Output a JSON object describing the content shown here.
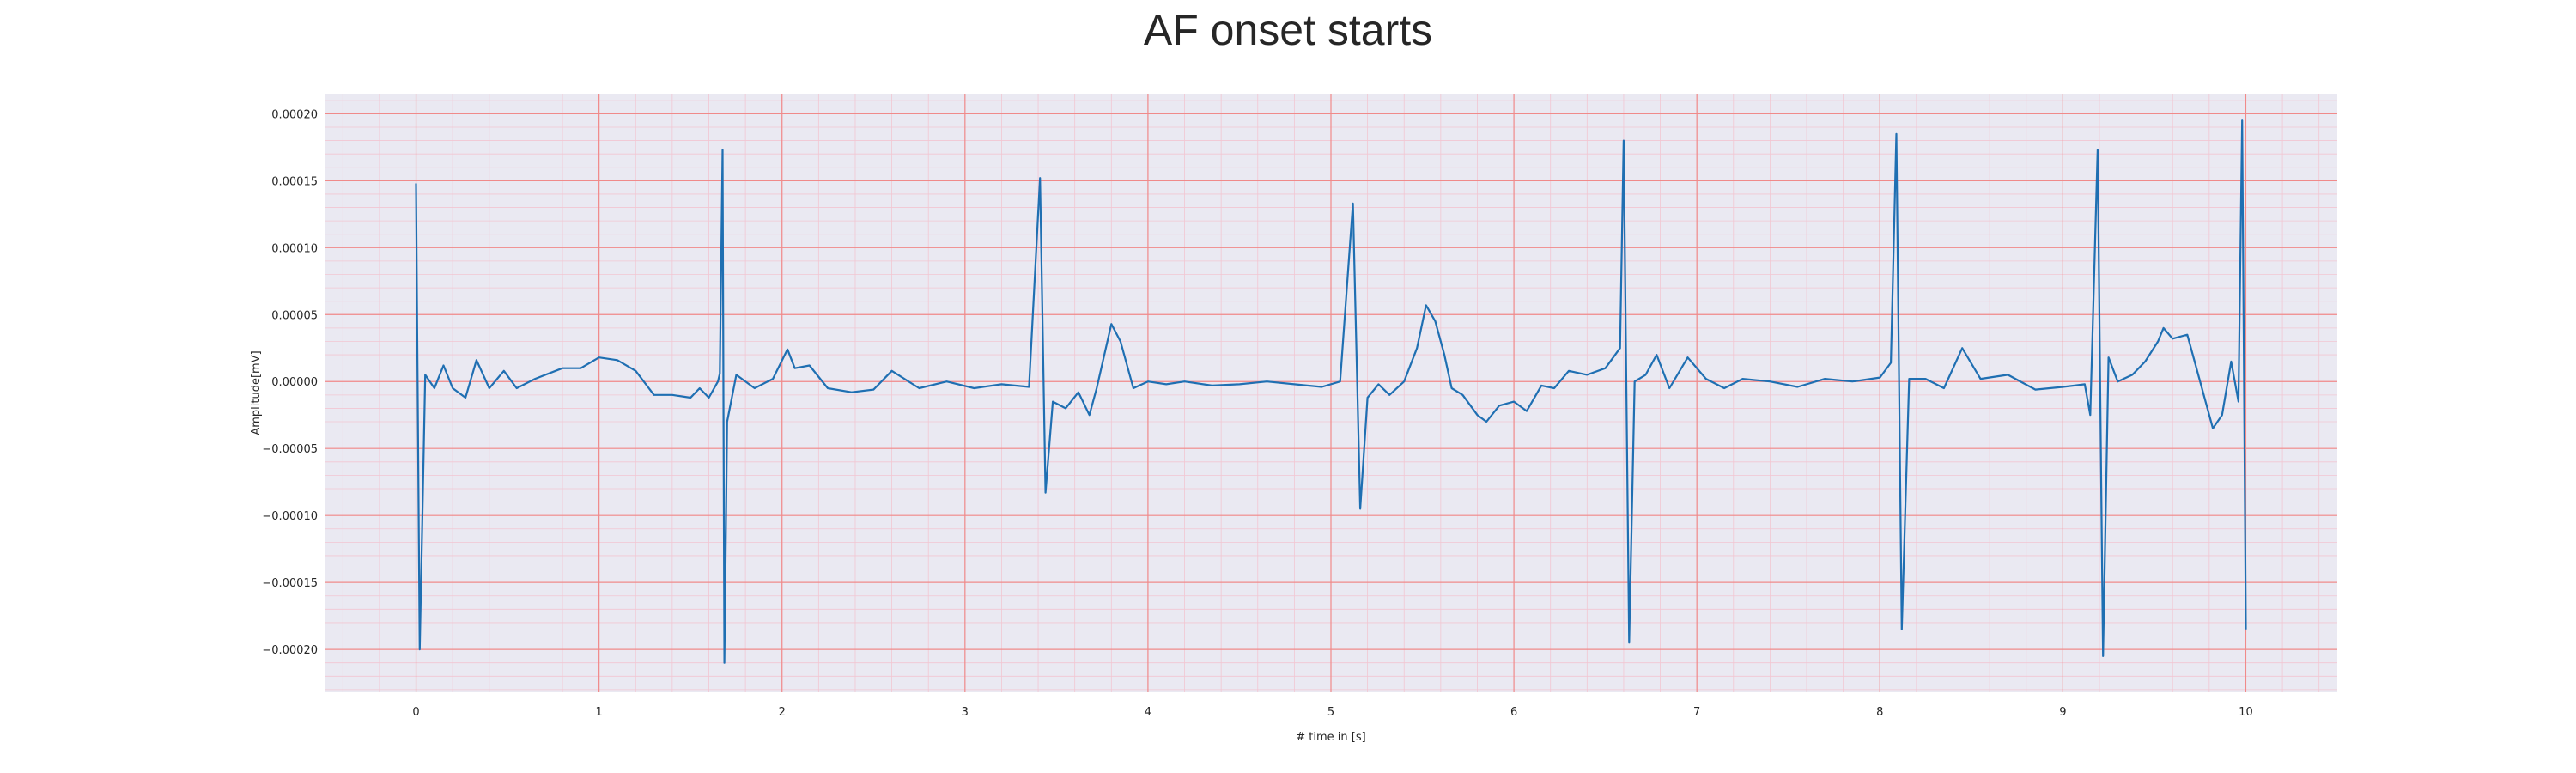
{
  "chart_data": {
    "type": "line",
    "title": "AF onset starts",
    "xlabel": "# time in [s]",
    "ylabel": "Amplitude[mV]",
    "xlim": [
      -0.5,
      10.5
    ],
    "ylim": [
      -0.000232,
      0.000215
    ],
    "xticks": [
      0,
      1,
      2,
      3,
      4,
      5,
      6,
      7,
      8,
      9,
      10
    ],
    "xtick_labels": [
      "0",
      "1",
      "2",
      "3",
      "4",
      "5",
      "6",
      "7",
      "8",
      "9",
      "10"
    ],
    "yticks": [
      0.0002,
      0.00015,
      0.0001,
      5e-05,
      0,
      -5e-05,
      -0.0001,
      -0.00015,
      -0.0002
    ],
    "ytick_labels": [
      "0.00020",
      "0.00015",
      "0.00010",
      "0.00005",
      "0.00000",
      "−0.00005",
      "−0.00010",
      "−0.00015",
      "−0.00020"
    ],
    "grid": "major and minor (ECG paper style)",
    "legend": "none",
    "colors": {
      "line": "#1f6fb2",
      "background": "#eae9f2",
      "major_grid": "#f08a8a",
      "minor_grid": "#f2c6d2"
    },
    "series": [
      {
        "values": [
          [
            0.0,
            0.000148
          ],
          [
            0.02,
            -0.0002
          ],
          [
            0.05,
            5e-06
          ],
          [
            0.1,
            -5e-06
          ],
          [
            0.15,
            1.2e-05
          ],
          [
            0.2,
            -5e-06
          ],
          [
            0.27,
            -1.2e-05
          ],
          [
            0.33,
            1.6e-05
          ],
          [
            0.4,
            -5e-06
          ],
          [
            0.48,
            8e-06
          ],
          [
            0.55,
            -5e-06
          ],
          [
            0.65,
            2e-06
          ],
          [
            0.8,
            1e-05
          ],
          [
            0.9,
            1e-05
          ],
          [
            1.0,
            1.8e-05
          ],
          [
            1.1,
            1.6e-05
          ],
          [
            1.2,
            8e-06
          ],
          [
            1.3,
            -1e-05
          ],
          [
            1.4,
            -1e-05
          ],
          [
            1.5,
            -1.2e-05
          ],
          [
            1.55,
            -5e-06
          ],
          [
            1.6,
            -1.2e-05
          ],
          [
            1.65,
            0.0
          ],
          [
            1.66,
            6e-06
          ],
          [
            1.675,
            0.000173
          ],
          [
            1.685,
            -0.00021
          ],
          [
            1.7,
            -3e-05
          ],
          [
            1.75,
            5e-06
          ],
          [
            1.85,
            -5e-06
          ],
          [
            1.95,
            2e-06
          ],
          [
            2.03,
            2.4e-05
          ],
          [
            2.07,
            1e-05
          ],
          [
            2.15,
            1.2e-05
          ],
          [
            2.25,
            -5e-06
          ],
          [
            2.38,
            -8e-06
          ],
          [
            2.5,
            -6e-06
          ],
          [
            2.6,
            8e-06
          ],
          [
            2.75,
            -5e-06
          ],
          [
            2.9,
            0.0
          ],
          [
            3.05,
            -5e-06
          ],
          [
            3.2,
            -2e-06
          ],
          [
            3.35,
            -4e-06
          ],
          [
            3.41,
            0.000152
          ],
          [
            3.44,
            -8.3e-05
          ],
          [
            3.48,
            -1.5e-05
          ],
          [
            3.55,
            -2e-05
          ],
          [
            3.62,
            -8e-06
          ],
          [
            3.68,
            -2.5e-05
          ],
          [
            3.72,
            -5e-06
          ],
          [
            3.8,
            4.3e-05
          ],
          [
            3.85,
            3e-05
          ],
          [
            3.92,
            -5e-06
          ],
          [
            4.0,
            0.0
          ],
          [
            4.1,
            -2e-06
          ],
          [
            4.2,
            0.0
          ],
          [
            4.35,
            -3e-06
          ],
          [
            4.5,
            -2e-06
          ],
          [
            4.65,
            0.0
          ],
          [
            4.8,
            -2e-06
          ],
          [
            4.95,
            -4e-06
          ],
          [
            5.05,
            0.0
          ],
          [
            5.12,
            0.000133
          ],
          [
            5.16,
            -9.5e-05
          ],
          [
            5.2,
            -1.2e-05
          ],
          [
            5.26,
            -2e-06
          ],
          [
            5.32,
            -1e-05
          ],
          [
            5.4,
            0.0
          ],
          [
            5.47,
            2.5e-05
          ],
          [
            5.52,
            5.7e-05
          ],
          [
            5.57,
            4.5e-05
          ],
          [
            5.62,
            2e-05
          ],
          [
            5.66,
            -5e-06
          ],
          [
            5.72,
            -1e-05
          ],
          [
            5.8,
            -2.5e-05
          ],
          [
            5.85,
            -3e-05
          ],
          [
            5.92,
            -1.8e-05
          ],
          [
            6.0,
            -1.5e-05
          ],
          [
            6.07,
            -2.2e-05
          ],
          [
            6.15,
            -3e-06
          ],
          [
            6.22,
            -5e-06
          ],
          [
            6.3,
            8e-06
          ],
          [
            6.4,
            5e-06
          ],
          [
            6.5,
            1e-05
          ],
          [
            6.58,
            2.5e-05
          ],
          [
            6.6,
            0.00018
          ],
          [
            6.63,
            -0.000195
          ],
          [
            6.66,
            0.0
          ],
          [
            6.72,
            5e-06
          ],
          [
            6.78,
            2e-05
          ],
          [
            6.85,
            -5e-06
          ],
          [
            6.95,
            1.8e-05
          ],
          [
            7.05,
            2e-06
          ],
          [
            7.15,
            -5e-06
          ],
          [
            7.25,
            2e-06
          ],
          [
            7.4,
            0.0
          ],
          [
            7.55,
            -4e-06
          ],
          [
            7.7,
            2e-06
          ],
          [
            7.85,
            0.0
          ],
          [
            8.0,
            3e-06
          ],
          [
            8.06,
            1.4e-05
          ],
          [
            8.09,
            0.000185
          ],
          [
            8.12,
            -0.000185
          ],
          [
            8.16,
            2e-06
          ],
          [
            8.25,
            2e-06
          ],
          [
            8.35,
            -5e-06
          ],
          [
            8.45,
            2.5e-05
          ],
          [
            8.55,
            2e-06
          ],
          [
            8.7,
            5e-06
          ],
          [
            8.85,
            -6e-06
          ],
          [
            9.0,
            -4e-06
          ],
          [
            9.12,
            -2e-06
          ],
          [
            9.15,
            -2.5e-05
          ],
          [
            9.19,
            0.000173
          ],
          [
            9.22,
            -0.000205
          ],
          [
            9.25,
            1.8e-05
          ],
          [
            9.3,
            0.0
          ],
          [
            9.38,
            5e-06
          ],
          [
            9.45,
            1.5e-05
          ],
          [
            9.52,
            3e-05
          ],
          [
            9.55,
            4e-05
          ],
          [
            9.6,
            3.2e-05
          ],
          [
            9.68,
            3.5e-05
          ],
          [
            9.75,
            0.0
          ],
          [
            9.82,
            -3.5e-05
          ],
          [
            9.87,
            -2.5e-05
          ],
          [
            9.92,
            1.5e-05
          ],
          [
            9.96,
            -1.5e-05
          ],
          [
            9.98,
            0.000195
          ],
          [
            10.0,
            -0.000185
          ]
        ]
      }
    ]
  }
}
